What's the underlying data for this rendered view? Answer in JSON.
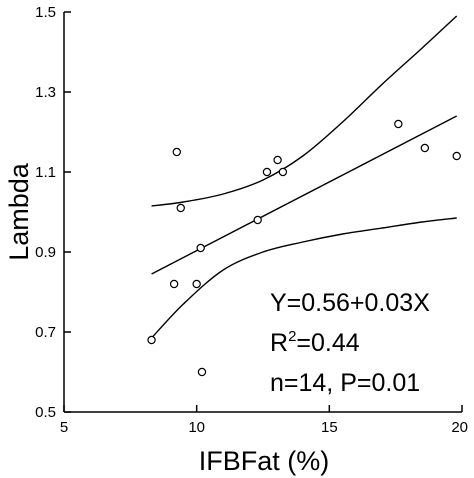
{
  "chart_data": {
    "type": "scatter",
    "title": "",
    "xlabel": "IFBFat (%)",
    "ylabel": "Lambda",
    "xlim": [
      5,
      20
    ],
    "ylim": [
      0.5,
      1.5
    ],
    "xticks": [
      5,
      10,
      15,
      20
    ],
    "yticks": [
      0.5,
      0.7,
      0.9,
      1.1,
      1.3,
      1.5
    ],
    "xtick_labels": [
      "5",
      "10",
      "15",
      "20"
    ],
    "ytick_labels": [
      "0.5",
      "0.7",
      "0.9",
      "1.1",
      "1.3",
      "1.5"
    ],
    "grid": false,
    "points": [
      {
        "x": 8.3,
        "y": 0.68
      },
      {
        "x": 9.15,
        "y": 0.82
      },
      {
        "x": 9.25,
        "y": 1.15
      },
      {
        "x": 9.4,
        "y": 1.01
      },
      {
        "x": 10.0,
        "y": 0.82
      },
      {
        "x": 10.15,
        "y": 0.91
      },
      {
        "x": 10.2,
        "y": 0.6
      },
      {
        "x": 12.3,
        "y": 0.98
      },
      {
        "x": 12.65,
        "y": 1.1
      },
      {
        "x": 13.05,
        "y": 1.13
      },
      {
        "x": 13.25,
        "y": 1.1
      },
      {
        "x": 17.6,
        "y": 1.22
      },
      {
        "x": 18.6,
        "y": 1.16
      },
      {
        "x": 19.8,
        "y": 1.14
      }
    ],
    "fit": {
      "regression": [
        {
          "x": 8.3,
          "y": 0.845
        },
        {
          "x": 19.8,
          "y": 1.24
        }
      ],
      "upper_band": [
        {
          "x": 8.3,
          "y": 1.015
        },
        {
          "x": 9.5,
          "y": 1.025
        },
        {
          "x": 11.0,
          "y": 1.045
        },
        {
          "x": 12.5,
          "y": 1.08
        },
        {
          "x": 14.0,
          "y": 1.14
        },
        {
          "x": 15.5,
          "y": 1.225
        },
        {
          "x": 17.0,
          "y": 1.32
        },
        {
          "x": 18.5,
          "y": 1.41
        },
        {
          "x": 19.8,
          "y": 1.49
        }
      ],
      "lower_band": [
        {
          "x": 8.3,
          "y": 0.685
        },
        {
          "x": 9.5,
          "y": 0.77
        },
        {
          "x": 11.0,
          "y": 0.855
        },
        {
          "x": 12.5,
          "y": 0.9
        },
        {
          "x": 14.0,
          "y": 0.925
        },
        {
          "x": 15.5,
          "y": 0.945
        },
        {
          "x": 17.0,
          "y": 0.96
        },
        {
          "x": 18.5,
          "y": 0.975
        },
        {
          "x": 19.8,
          "y": 0.985
        }
      ]
    },
    "annotation": {
      "equation": "Y=0.56+0.03X",
      "r2_prefix": "R",
      "r2_sup": "2",
      "r2_value": "=0.44",
      "n_p": "n=14, P=0.01"
    }
  },
  "colors": {
    "line": "#000000",
    "marker_fill": "#ffffff",
    "text": "#000000",
    "background": "#ffffff"
  }
}
